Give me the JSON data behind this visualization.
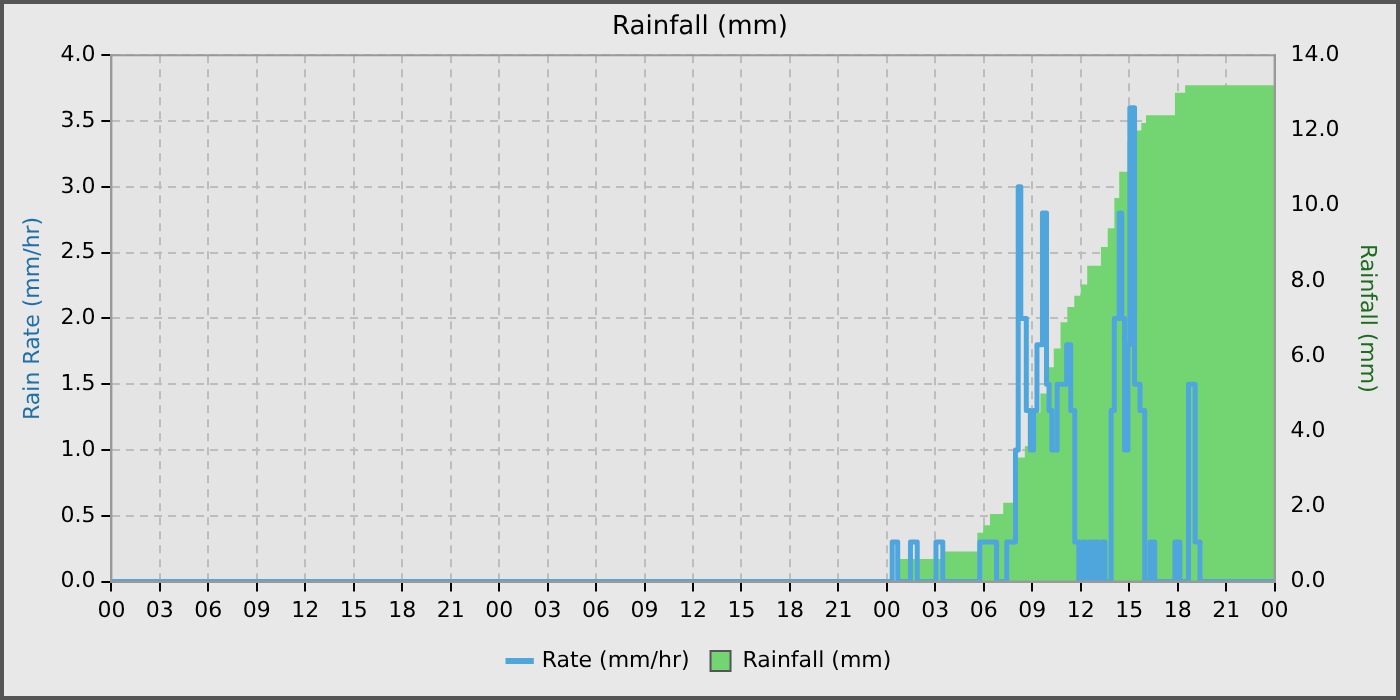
{
  "chart_data": {
    "type": "line",
    "title": "Rainfall (mm)",
    "ylabel": "Rain Rate (mm/hr)",
    "y2label": "Rainfall (mm)",
    "xlim": [
      0,
      72
    ],
    "xticks": [
      {
        "value": 0,
        "label": "00"
      },
      {
        "value": 3,
        "label": "03"
      },
      {
        "value": 6,
        "label": "06"
      },
      {
        "value": 9,
        "label": "09"
      },
      {
        "value": 12,
        "label": "12"
      },
      {
        "value": 15,
        "label": "15"
      },
      {
        "value": 18,
        "label": "18"
      },
      {
        "value": 21,
        "label": "21"
      },
      {
        "value": 24,
        "label": "00"
      },
      {
        "value": 27,
        "label": "03"
      },
      {
        "value": 30,
        "label": "06"
      },
      {
        "value": 33,
        "label": "09"
      },
      {
        "value": 36,
        "label": "12"
      },
      {
        "value": 39,
        "label": "15"
      },
      {
        "value": 42,
        "label": "18"
      },
      {
        "value": 45,
        "label": "21"
      },
      {
        "value": 48,
        "label": "00"
      },
      {
        "value": 51,
        "label": "03"
      },
      {
        "value": 54,
        "label": "06"
      },
      {
        "value": 57,
        "label": "09"
      },
      {
        "value": 60,
        "label": "12"
      },
      {
        "value": 63,
        "label": "15"
      },
      {
        "value": 66,
        "label": "18"
      },
      {
        "value": 69,
        "label": "21"
      },
      {
        "value": 72,
        "label": "00"
      }
    ],
    "ylim": [
      0,
      4
    ],
    "yticks": [
      {
        "value": 0,
        "label": "0.0"
      },
      {
        "value": 0.5,
        "label": "0.5"
      },
      {
        "value": 1,
        "label": "1.0"
      },
      {
        "value": 1.5,
        "label": "1.5"
      },
      {
        "value": 2,
        "label": "2.0"
      },
      {
        "value": 2.5,
        "label": "2.5"
      },
      {
        "value": 3,
        "label": "3.0"
      },
      {
        "value": 3.5,
        "label": "3.5"
      },
      {
        "value": 4,
        "label": "4.0"
      }
    ],
    "y2lim": [
      0,
      14
    ],
    "y2ticks": [
      {
        "value": 0,
        "label": "0.0"
      },
      {
        "value": 2,
        "label": "2.0"
      },
      {
        "value": 4,
        "label": "4.0"
      },
      {
        "value": 6,
        "label": "6.0"
      },
      {
        "value": 8,
        "label": "8.0"
      },
      {
        "value": 10,
        "label": "10.0"
      },
      {
        "value": 12,
        "label": "12.0"
      },
      {
        "value": 14,
        "label": "14.0"
      }
    ],
    "grid": true,
    "legend": "bottom",
    "marker": "none",
    "series": [
      {
        "name": "Rainfall (mm)",
        "type": "area",
        "axis": "y2",
        "color": "#72d572",
        "x": [
          48.75,
          51.46,
          53.6,
          53.96,
          54.38,
          55.2,
          55.83,
          56.1,
          56.54,
          56.88,
          57.5,
          57.9,
          58.33,
          58.75,
          59.17,
          59.6,
          60,
          60.4,
          61.25,
          61.67,
          62.08,
          62.38,
          62.9,
          63.33,
          63.75,
          64.04,
          65.83,
          66.46,
          66.88,
          72
        ],
        "values": [
          0.6,
          0.8,
          1.3,
          1.5,
          1.8,
          2.1,
          2.9,
          3.3,
          3.6,
          4.5,
          5,
          5.7,
          6.2,
          6.9,
          7.3,
          7.6,
          7.9,
          8.4,
          8.9,
          9.4,
          10.2,
          10.9,
          11.7,
          12,
          12.2,
          12.4,
          13,
          13.2,
          13.2,
          13.2
        ]
      },
      {
        "name": "Rate (mm/hr)",
        "type": "step",
        "axis": "y",
        "color": "#4ea6dc",
        "x": [
          0,
          48.33,
          48.67,
          49.46,
          49.88,
          51.04,
          51.46,
          53.75,
          54.79,
          55.42,
          55.96,
          56.13,
          56.29,
          56.63,
          56.88,
          57.08,
          57.29,
          57.63,
          57.88,
          58.04,
          58.21,
          58.54,
          59.13,
          59.38,
          59.63,
          59.88,
          60.1,
          60.3,
          60.5,
          60.7,
          60.9,
          61.1,
          61.3,
          61.5,
          61.88,
          62.08,
          62.38,
          62.54,
          62.71,
          62.92,
          63.04,
          63.33,
          63.67,
          63.96,
          64.29,
          64.58,
          65.83,
          66.13,
          66.67,
          67.08,
          67.38,
          72
        ],
        "values": [
          0,
          0.3,
          0,
          0.3,
          0,
          0.3,
          0,
          0.3,
          0,
          0.3,
          1,
          3,
          2,
          1.3,
          1,
          1.3,
          1.8,
          2.8,
          1.5,
          1.3,
          1,
          1.5,
          1.8,
          1.3,
          0.3,
          0,
          0.3,
          0,
          0.3,
          0,
          0.3,
          0,
          0.3,
          0,
          1.3,
          2,
          2.8,
          2,
          1,
          1.8,
          3.6,
          1.5,
          1.3,
          0,
          0.3,
          0,
          0.3,
          0,
          1.5,
          0.3,
          0,
          0
        ]
      }
    ]
  }
}
